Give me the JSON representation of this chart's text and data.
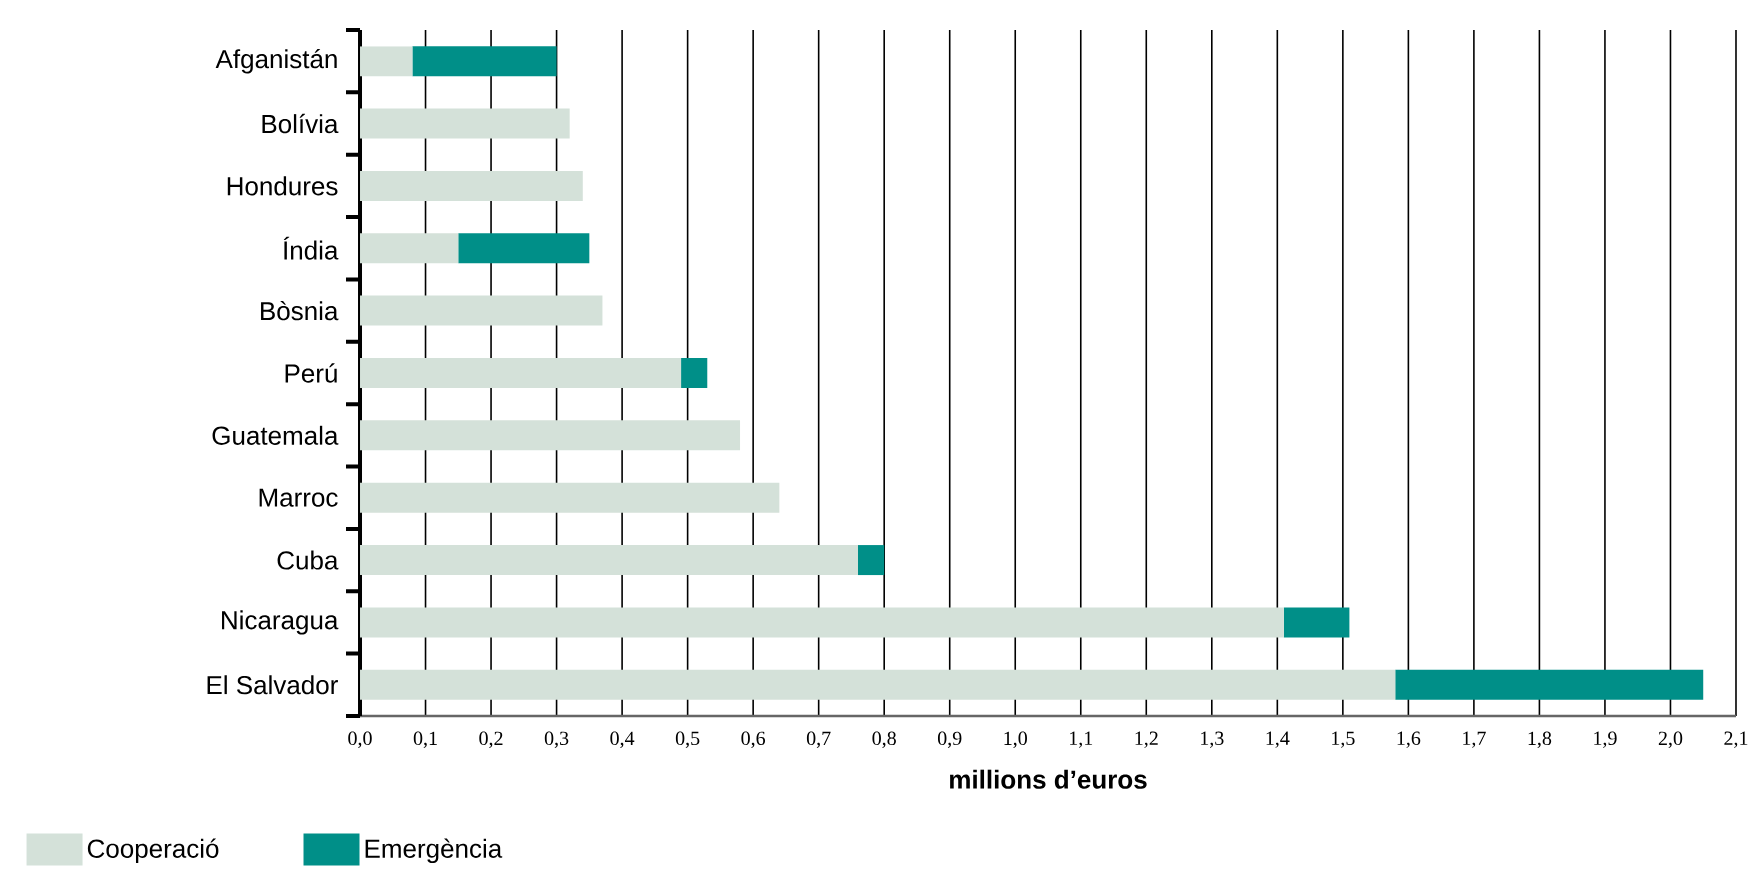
{
  "chart_data": {
    "type": "bar",
    "orientation": "horizontal",
    "stacked": true,
    "categories": [
      "Afganistán",
      "Bolívia",
      "Hondures",
      "Índia",
      "Bòsnia",
      "Perú",
      "Guatemala",
      "Marroc",
      "Cuba",
      "Nicaragua",
      "El Salvador"
    ],
    "series": [
      {
        "name": "Cooperació",
        "color": "#d4e1d9",
        "values": [
          0.08,
          0.32,
          0.34,
          0.15,
          0.37,
          0.49,
          0.58,
          0.64,
          0.76,
          1.41,
          1.58
        ]
      },
      {
        "name": "Emergència",
        "color": "#008f88",
        "values": [
          0.22,
          null,
          null,
          0.2,
          null,
          0.04,
          null,
          null,
          0.04,
          0.1,
          0.47
        ]
      }
    ],
    "xlabel": "millions d’euros",
    "xlim": [
      0,
      2.1
    ],
    "xticks": [
      {
        "value": 0,
        "label": "0,0"
      },
      {
        "value": 0.1,
        "label": "0,1"
      },
      {
        "value": 0.2,
        "label": "0,2"
      },
      {
        "value": 0.3,
        "label": "0,3"
      },
      {
        "value": 0.4,
        "label": "0,4"
      },
      {
        "value": 0.5,
        "label": "0,5"
      },
      {
        "value": 0.6,
        "label": "0,6"
      },
      {
        "value": 0.7,
        "label": "0,7"
      },
      {
        "value": 0.8,
        "label": "0,8"
      },
      {
        "value": 0.9,
        "label": "0,9"
      },
      {
        "value": 1.0,
        "label": "1,0"
      },
      {
        "value": 1.1,
        "label": "1,1"
      },
      {
        "value": 1.2,
        "label": "1,2"
      },
      {
        "value": 1.3,
        "label": "1,3"
      },
      {
        "value": 1.4,
        "label": "1,4"
      },
      {
        "value": 1.5,
        "label": "1,5"
      },
      {
        "value": 1.6,
        "label": "1,6"
      },
      {
        "value": 1.7,
        "label": "1,7"
      },
      {
        "value": 1.8,
        "label": "1,8"
      },
      {
        "value": 1.9,
        "label": "1,9"
      },
      {
        "value": 2.0,
        "label": "2,0"
      },
      {
        "value": 2.1,
        "label": "2,1"
      }
    ],
    "grid": "x",
    "legend": "bottom left"
  }
}
